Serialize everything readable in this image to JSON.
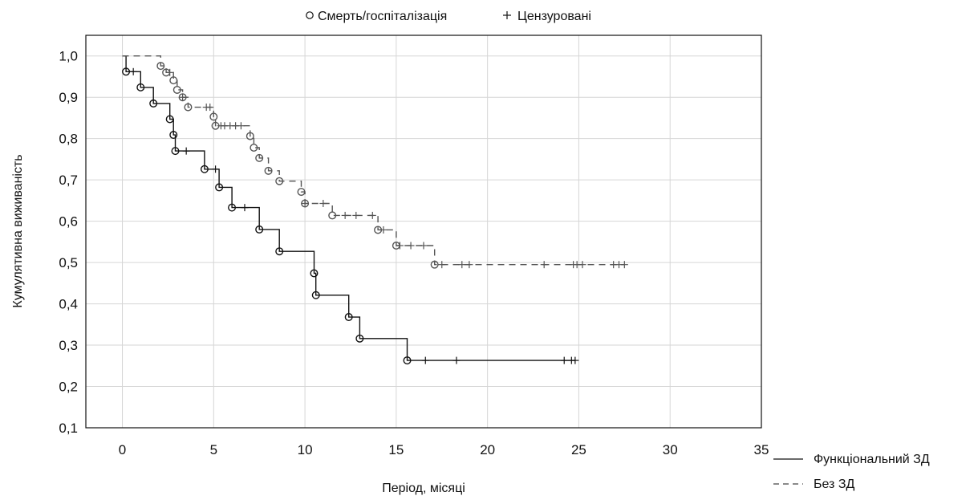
{
  "chart_data": {
    "type": "line",
    "subtype": "kaplan-meier",
    "title": "",
    "xlabel": "Період, місяці",
    "ylabel": "Кумулятивна виживаність",
    "xlim": [
      -2,
      35
    ],
    "ylim": [
      0.1,
      1.05
    ],
    "x_ticks": [
      0,
      5,
      10,
      15,
      20,
      25,
      30,
      35
    ],
    "x_tick_labels": [
      "0",
      "5",
      "10",
      "15",
      "20",
      "25",
      "30",
      "35"
    ],
    "y_ticks": [
      0.1,
      0.2,
      0.3,
      0.4,
      0.5,
      0.6,
      0.7,
      0.8,
      0.9,
      1.0
    ],
    "y_tick_labels": [
      "0,1",
      "0,2",
      "0,3",
      "0,4",
      "0,5",
      "0,6",
      "0,7",
      "0,8",
      "0,9",
      "1,0"
    ],
    "grid": true,
    "marker_legend": {
      "event_label": "Смерть/госпіталізація",
      "censor_label": "Цензуровані"
    },
    "line_legend_position": "bottom-right",
    "series": [
      {
        "name": "Функціональний ЗД",
        "style": "solid",
        "color": "#111111",
        "steps": [
          [
            0,
            1.0
          ],
          [
            0.2,
            0.962
          ],
          [
            1.0,
            0.924
          ],
          [
            1.7,
            0.885
          ],
          [
            2.6,
            0.847
          ],
          [
            2.8,
            0.809
          ],
          [
            2.9,
            0.77
          ],
          [
            4.5,
            0.726
          ],
          [
            5.3,
            0.682
          ],
          [
            6.0,
            0.633
          ],
          [
            7.5,
            0.58
          ],
          [
            8.6,
            0.527
          ],
          [
            10.5,
            0.474
          ],
          [
            10.6,
            0.421
          ],
          [
            12.4,
            0.368
          ],
          [
            13.0,
            0.316
          ],
          [
            15.6,
            0.263
          ],
          [
            24.8,
            0.263
          ]
        ],
        "events": [
          [
            0.2,
            0.962
          ],
          [
            1.0,
            0.924
          ],
          [
            1.7,
            0.885
          ],
          [
            2.6,
            0.847
          ],
          [
            2.8,
            0.809
          ],
          [
            2.9,
            0.77
          ],
          [
            4.5,
            0.726
          ],
          [
            5.3,
            0.682
          ],
          [
            6.0,
            0.633
          ],
          [
            7.5,
            0.58
          ],
          [
            8.6,
            0.527
          ],
          [
            10.5,
            0.474
          ],
          [
            10.6,
            0.421
          ],
          [
            12.4,
            0.368
          ],
          [
            13.0,
            0.316
          ],
          [
            15.6,
            0.263
          ]
        ],
        "censored": [
          [
            0.6,
            0.962
          ],
          [
            3.5,
            0.77
          ],
          [
            5.1,
            0.726
          ],
          [
            6.7,
            0.633
          ],
          [
            16.6,
            0.263
          ],
          [
            18.3,
            0.263
          ],
          [
            24.2,
            0.263
          ],
          [
            24.6,
            0.263
          ],
          [
            24.8,
            0.263
          ]
        ]
      },
      {
        "name": "Без ЗД",
        "style": "dashed",
        "color": "#555555",
        "steps": [
          [
            0,
            1.0
          ],
          [
            2.1,
            0.976
          ],
          [
            2.4,
            0.96
          ],
          [
            2.8,
            0.941
          ],
          [
            3.0,
            0.918
          ],
          [
            3.3,
            0.9
          ],
          [
            3.6,
            0.876
          ],
          [
            5.0,
            0.853
          ],
          [
            5.1,
            0.831
          ],
          [
            7.0,
            0.806
          ],
          [
            7.2,
            0.778
          ],
          [
            7.5,
            0.753
          ],
          [
            8.0,
            0.722
          ],
          [
            8.6,
            0.697
          ],
          [
            9.8,
            0.671
          ],
          [
            10.0,
            0.643
          ],
          [
            11.5,
            0.614
          ],
          [
            14.0,
            0.579
          ],
          [
            15.0,
            0.541
          ],
          [
            17.1,
            0.495
          ],
          [
            27.5,
            0.495
          ]
        ],
        "events": [
          [
            2.1,
            0.976
          ],
          [
            2.4,
            0.96
          ],
          [
            2.8,
            0.941
          ],
          [
            3.0,
            0.918
          ],
          [
            3.3,
            0.9
          ],
          [
            3.6,
            0.876
          ],
          [
            5.0,
            0.853
          ],
          [
            5.1,
            0.831
          ],
          [
            7.0,
            0.806
          ],
          [
            7.2,
            0.778
          ],
          [
            7.5,
            0.753
          ],
          [
            8.0,
            0.722
          ],
          [
            8.6,
            0.697
          ],
          [
            9.8,
            0.671
          ],
          [
            10.0,
            0.643
          ],
          [
            11.5,
            0.614
          ],
          [
            14.0,
            0.579
          ],
          [
            15.0,
            0.541
          ],
          [
            17.1,
            0.495
          ]
        ],
        "censored": [
          [
            2.6,
            0.96
          ],
          [
            3.3,
            0.9
          ],
          [
            4.6,
            0.876
          ],
          [
            4.8,
            0.876
          ],
          [
            5.4,
            0.831
          ],
          [
            5.6,
            0.831
          ],
          [
            5.9,
            0.831
          ],
          [
            6.2,
            0.831
          ],
          [
            6.5,
            0.831
          ],
          [
            10.0,
            0.643
          ],
          [
            11.0,
            0.643
          ],
          [
            12.2,
            0.614
          ],
          [
            12.8,
            0.614
          ],
          [
            13.7,
            0.614
          ],
          [
            14.3,
            0.579
          ],
          [
            15.2,
            0.541
          ],
          [
            15.8,
            0.541
          ],
          [
            16.5,
            0.541
          ],
          [
            17.5,
            0.495
          ],
          [
            18.6,
            0.495
          ],
          [
            19.0,
            0.495
          ],
          [
            23.1,
            0.495
          ],
          [
            24.7,
            0.495
          ],
          [
            24.9,
            0.495
          ],
          [
            25.2,
            0.495
          ],
          [
            26.9,
            0.495
          ],
          [
            27.2,
            0.495
          ],
          [
            27.5,
            0.495
          ]
        ]
      }
    ]
  }
}
